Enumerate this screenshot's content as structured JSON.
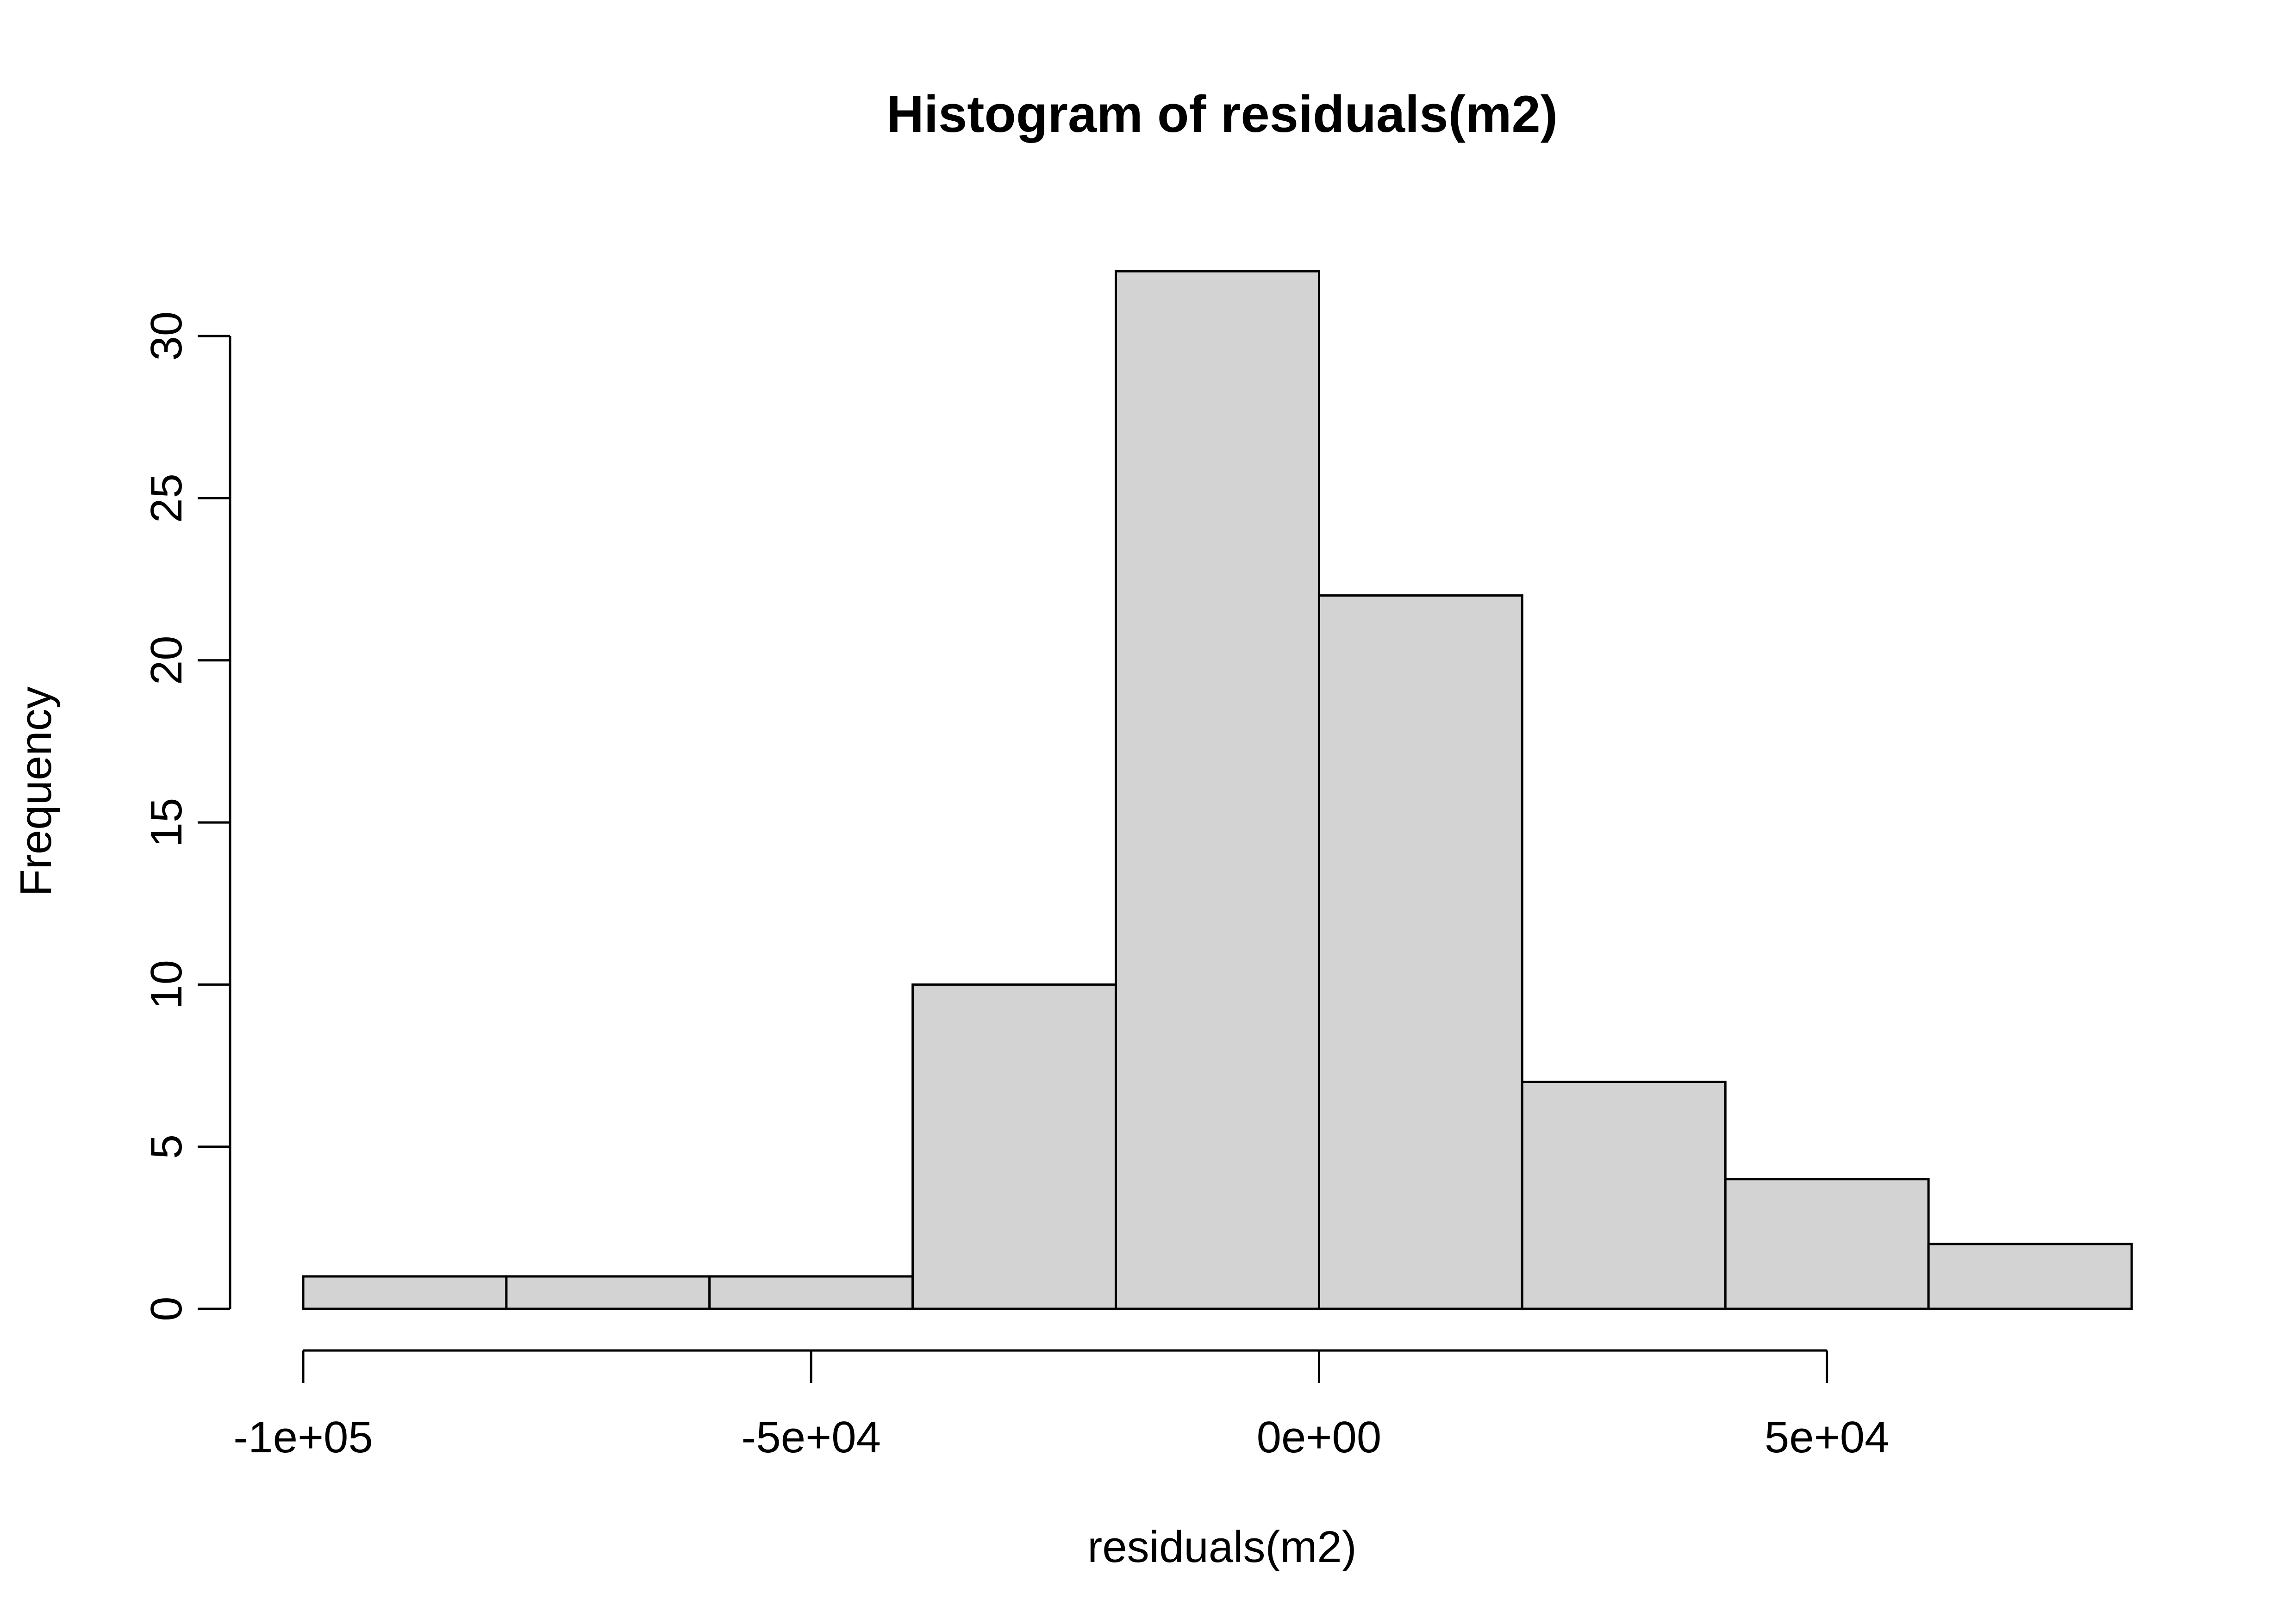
{
  "chart_data": {
    "type": "bar",
    "title": "Histogram of residuals(m2)",
    "xlabel": "residuals(m2)",
    "ylabel": "Frequency",
    "bins": [
      {
        "start": -100000,
        "end": -80000,
        "count": 1
      },
      {
        "start": -80000,
        "end": -60000,
        "count": 1
      },
      {
        "start": -60000,
        "end": -40000,
        "count": 1
      },
      {
        "start": -40000,
        "end": -20000,
        "count": 10
      },
      {
        "start": -20000,
        "end": 0,
        "count": 32
      },
      {
        "start": 0,
        "end": 20000,
        "count": 22
      },
      {
        "start": 20000,
        "end": 40000,
        "count": 7
      },
      {
        "start": 40000,
        "end": 60000,
        "count": 4
      },
      {
        "start": 60000,
        "end": 80000,
        "count": 2
      }
    ],
    "xlim": [
      -100000,
      80000
    ],
    "ylim": [
      0,
      32
    ],
    "x_ticks": [
      {
        "value": -100000,
        "label": "-1e+05"
      },
      {
        "value": -50000,
        "label": "-5e+04"
      },
      {
        "value": 0,
        "label": "0e+00"
      },
      {
        "value": 50000,
        "label": "5e+04"
      }
    ],
    "y_ticks": [
      {
        "value": 0,
        "label": "0"
      },
      {
        "value": 5,
        "label": "5"
      },
      {
        "value": 10,
        "label": "10"
      },
      {
        "value": 15,
        "label": "15"
      },
      {
        "value": 20,
        "label": "20"
      },
      {
        "value": 25,
        "label": "25"
      },
      {
        "value": 30,
        "label": "30"
      }
    ],
    "grid": false,
    "bar_fill": "#d3d3d3",
    "bar_stroke": "#000000"
  }
}
